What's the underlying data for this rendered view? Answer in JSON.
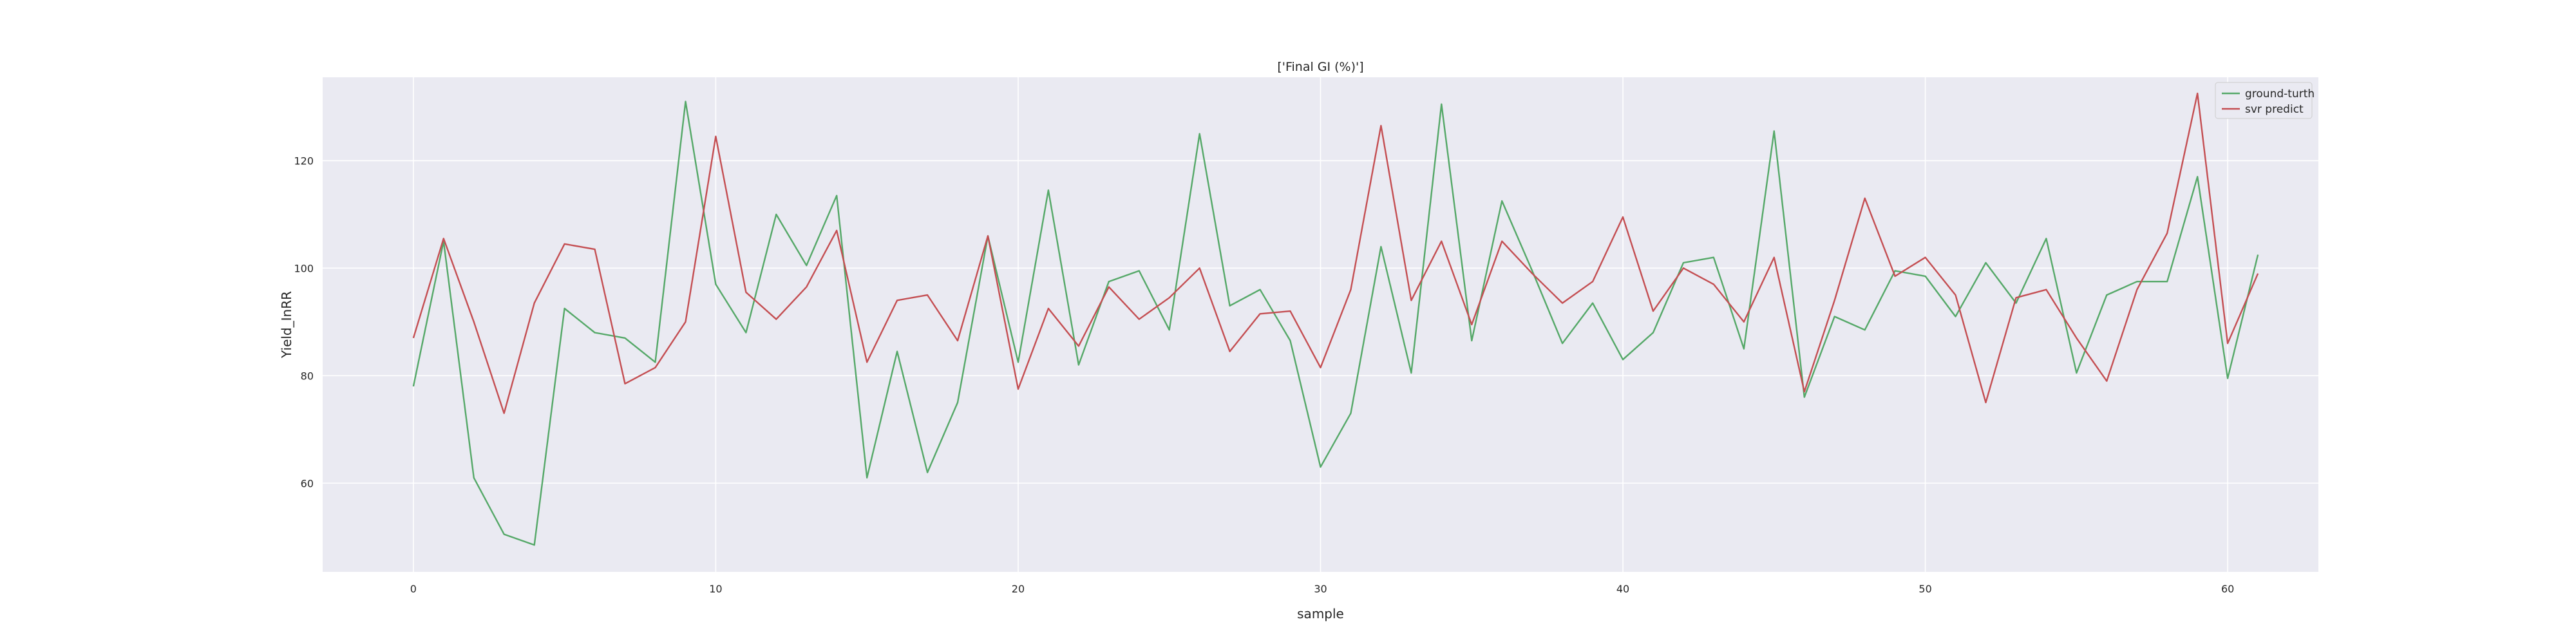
{
  "chart_data": {
    "type": "line",
    "title": "['Final GI (%)']",
    "xlabel": "sample",
    "ylabel": "Yield_InRR",
    "xlim": [
      -3,
      63
    ],
    "ylim": [
      43.5,
      135.5
    ],
    "xticks": [
      0,
      10,
      20,
      30,
      40,
      50,
      60
    ],
    "yticks": [
      60,
      80,
      100,
      120
    ],
    "grid": true,
    "legend_position": "top-right",
    "x": [
      0,
      1,
      2,
      3,
      4,
      5,
      6,
      7,
      8,
      9,
      10,
      11,
      12,
      13,
      14,
      15,
      16,
      17,
      18,
      19,
      20,
      21,
      22,
      23,
      24,
      25,
      26,
      27,
      28,
      29,
      30,
      31,
      32,
      33,
      34,
      35,
      36,
      37,
      38,
      39,
      40,
      41,
      42,
      43,
      44,
      45,
      46,
      47,
      48,
      49,
      50,
      51,
      52,
      53,
      54,
      55,
      56,
      57,
      58,
      59,
      60,
      61
    ],
    "series": [
      {
        "name": "ground-turth",
        "color": "#55a868",
        "values": [
          78,
          105,
          61,
          50.5,
          48.5,
          92.5,
          88,
          87,
          82.5,
          131,
          97,
          88,
          110,
          100.5,
          113.5,
          61,
          84.5,
          62,
          75,
          106,
          82.5,
          114.5,
          82,
          97.5,
          99.5,
          88.5,
          125,
          93,
          96,
          86.5,
          63,
          73,
          104,
          80.5,
          130.5,
          86.5,
          112.5,
          99.5,
          86,
          93.5,
          83,
          88,
          101,
          102,
          85,
          125.5,
          76,
          91,
          88.5,
          99.5,
          98.5,
          91,
          101,
          93.5,
          105.5,
          80.5,
          95,
          97.5,
          97.5,
          117,
          79.5,
          102.5
        ]
      },
      {
        "name": "svr predict",
        "color": "#c44e52",
        "values": [
          87,
          105.5,
          90,
          73,
          93.5,
          104.5,
          103.5,
          78.5,
          81.5,
          90,
          124.5,
          95.5,
          90.5,
          96.5,
          107,
          82.5,
          94,
          95,
          86.5,
          106,
          77.5,
          92.5,
          85.5,
          96.5,
          90.5,
          94.5,
          100,
          84.5,
          91.5,
          92,
          81.5,
          96,
          126.5,
          94,
          105,
          89.5,
          105,
          99,
          93.5,
          97.5,
          109.5,
          92,
          100,
          97,
          90,
          102,
          77,
          94,
          113,
          98.5,
          102,
          95,
          75,
          94.5,
          96,
          87,
          79,
          96,
          106.5,
          132.5,
          86,
          99
        ]
      }
    ]
  }
}
